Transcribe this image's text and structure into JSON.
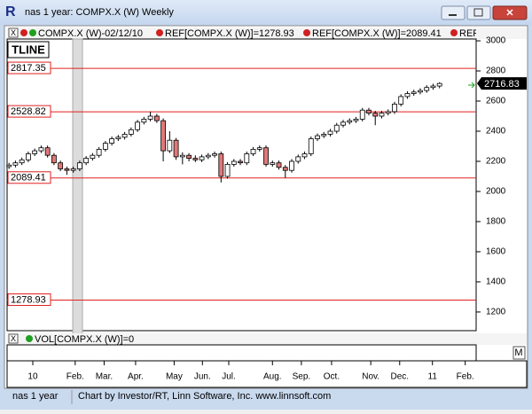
{
  "window": {
    "title": "nas 1 year: COMPX.X (W) Weekly",
    "header": [
      "COMPX.X (W)-02/12/10",
      "REF[COMPX.X (W)]=1278.93",
      "REF[COMPX.X (W)]=2089.41",
      "REF[COMPX.X (W)]="
    ],
    "study": "TLINE",
    "volume": "VOL[COMPX.X (W)]=0",
    "menu": "M",
    "status": [
      "nas 1 year",
      "Chart by Investor/RT, Linn Software, Inc. www.linnsoft.com"
    ]
  },
  "chart_data": {
    "type": "candlestick",
    "open": [
      2165,
      2175,
      2190,
      2210,
      2250,
      2270,
      2290,
      2240,
      2190,
      2150,
      2140,
      2150,
      2190,
      2220,
      2240,
      2280,
      2320,
      2350,
      2360,
      2380,
      2410,
      2460,
      2480,
      2500,
      2470,
      2270,
      2340,
      2230,
      2240,
      2220,
      2210,
      2230,
      2240,
      2250,
      2100,
      2180,
      2200,
      2190,
      2250,
      2280,
      2290,
      2180,
      2190,
      2160,
      2140,
      2200,
      2230,
      2250,
      2350,
      2370,
      2380,
      2400,
      2440,
      2460,
      2470,
      2480,
      2540,
      2520,
      2500,
      2520,
      2530,
      2580,
      2630,
      2650,
      2660,
      2670,
      2690,
      2700
    ],
    "high": [
      2190,
      2205,
      2225,
      2265,
      2285,
      2305,
      2305,
      2255,
      2205,
      2165,
      2165,
      2205,
      2235,
      2255,
      2295,
      2335,
      2365,
      2375,
      2395,
      2425,
      2475,
      2495,
      2530,
      2515,
      2485,
      2400,
      2355,
      2260,
      2255,
      2240,
      2245,
      2255,
      2265,
      2265,
      2195,
      2215,
      2215,
      2265,
      2295,
      2305,
      2305,
      2205,
      2205,
      2175,
      2215,
      2245,
      2265,
      2365,
      2385,
      2395,
      2415,
      2455,
      2475,
      2485,
      2495,
      2555,
      2555,
      2535,
      2535,
      2545,
      2595,
      2645,
      2665,
      2675,
      2685,
      2705,
      2715,
      2725
    ],
    "low": [
      2150,
      2160,
      2175,
      2195,
      2235,
      2255,
      2225,
      2175,
      2135,
      2110,
      2125,
      2135,
      2175,
      2205,
      2225,
      2265,
      2305,
      2335,
      2345,
      2365,
      2395,
      2445,
      2465,
      2455,
      2200,
      2255,
      2210,
      2180,
      2200,
      2195,
      2195,
      2215,
      2225,
      2060,
      2085,
      2165,
      2175,
      2175,
      2235,
      2265,
      2165,
      2165,
      2145,
      2090,
      2125,
      2185,
      2215,
      2235,
      2335,
      2355,
      2365,
      2385,
      2425,
      2445,
      2455,
      2465,
      2505,
      2440,
      2485,
      2505,
      2515,
      2565,
      2615,
      2635,
      2645,
      2655,
      2675,
      2685
    ],
    "close": [
      2175,
      2190,
      2210,
      2250,
      2270,
      2290,
      2240,
      2190,
      2150,
      2140,
      2150,
      2190,
      2220,
      2240,
      2280,
      2320,
      2350,
      2360,
      2380,
      2410,
      2460,
      2480,
      2500,
      2470,
      2270,
      2340,
      2230,
      2240,
      2220,
      2210,
      2230,
      2240,
      2250,
      2100,
      2180,
      2200,
      2190,
      2250,
      2280,
      2290,
      2180,
      2190,
      2160,
      2140,
      2200,
      2230,
      2250,
      2350,
      2370,
      2380,
      2400,
      2440,
      2460,
      2470,
      2480,
      2540,
      2520,
      2500,
      2520,
      2530,
      2580,
      2630,
      2650,
      2660,
      2670,
      2690,
      2700,
      2716.83
    ],
    "up_color": "#ffffff",
    "down_color": "#e07878",
    "outline_color": "#000000",
    "ref_lines": {
      "values": [
        2817.35,
        2528.82,
        2089.41,
        1278.93
      ],
      "color": "#e02020"
    },
    "ylim": [
      1076,
      3012
    ],
    "yticks": [
      1200,
      1400,
      1600,
      1800,
      2000,
      2200,
      2400,
      2600,
      2800,
      3000
    ],
    "xlim": [
      -0.3,
      72.7
    ],
    "xticks": [
      {
        "value": 3.7,
        "label": "10"
      },
      {
        "value": 10.3,
        "label": "Feb."
      },
      {
        "value": 14.8,
        "label": "Mar."
      },
      {
        "value": 19.7,
        "label": "Apr."
      },
      {
        "value": 25.7,
        "label": "May"
      },
      {
        "value": 30.1,
        "label": "Jun."
      },
      {
        "value": 34.2,
        "label": "Jul."
      },
      {
        "value": 41,
        "label": "Aug."
      },
      {
        "value": 45.5,
        "label": "Sep."
      },
      {
        "value": 50.2,
        "label": "Oct."
      },
      {
        "value": 56.3,
        "label": "Nov."
      },
      {
        "value": 60.8,
        "label": "Dec."
      },
      {
        "value": 65.9,
        "label": "11"
      },
      {
        "value": 71,
        "label": "Feb."
      }
    ]
  }
}
